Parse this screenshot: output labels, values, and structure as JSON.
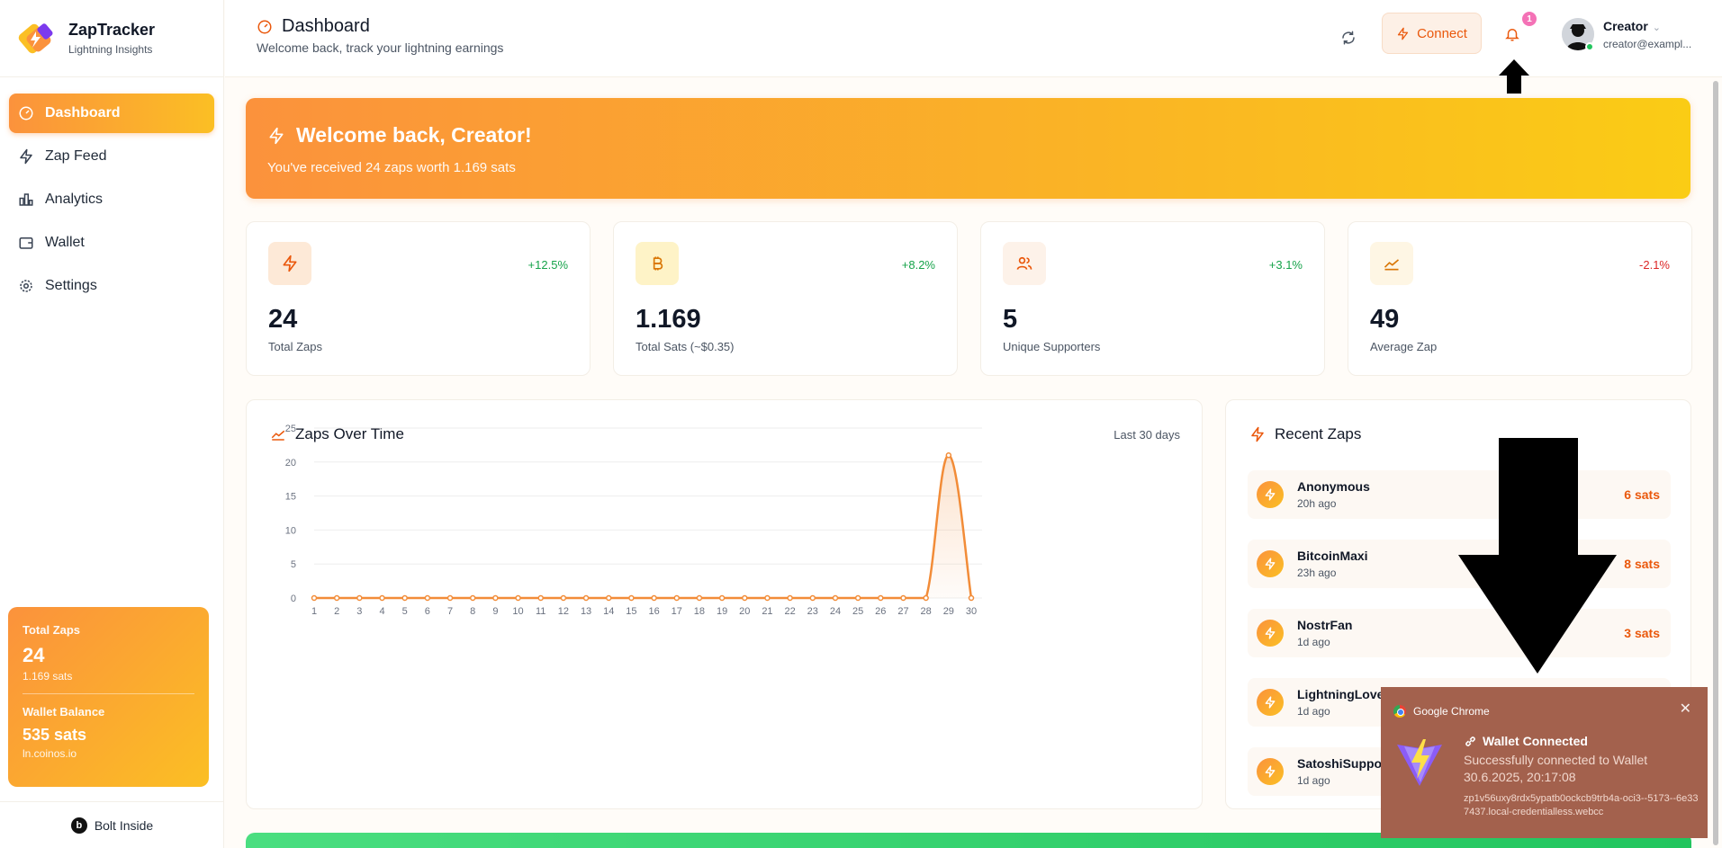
{
  "brand": {
    "name": "ZapTracker",
    "tagline": "Lightning Insights"
  },
  "sidebar": {
    "items": [
      {
        "label": "Dashboard",
        "icon": "dashboard-icon",
        "active": true
      },
      {
        "label": "Zap Feed",
        "icon": "zap-icon",
        "active": false
      },
      {
        "label": "Analytics",
        "icon": "bar-chart-icon",
        "active": false
      },
      {
        "label": "Wallet",
        "icon": "wallet-icon",
        "active": false
      },
      {
        "label": "Settings",
        "icon": "gear-icon",
        "active": false
      }
    ],
    "summary": {
      "total_zaps_label": "Total Zaps",
      "total_zaps_value": "24",
      "total_sats": "1.169 sats",
      "wallet_label": "Wallet Balance",
      "wallet_value": "535 sats",
      "wallet_provider": "ln.coinos.io"
    },
    "footer": "Bolt Inside",
    "footer_badge": "b"
  },
  "header": {
    "title": "Dashboard",
    "subtitle": "Welcome back, track your lightning earnings",
    "connect_label": "Connect",
    "notification_count": "1",
    "user_name": "Creator",
    "user_email": "creator@exampl..."
  },
  "welcome": {
    "title": "Welcome back, Creator!",
    "subtitle": "You've received 24 zaps worth 1.169 sats"
  },
  "stats": [
    {
      "value": "24",
      "label": "Total Zaps",
      "change": "+12.5%",
      "trend": "up",
      "icon": "zap-icon"
    },
    {
      "value": "1.169",
      "label": "Total Sats (~$0.35)",
      "change": "+8.2%",
      "trend": "up",
      "icon": "bitcoin-icon"
    },
    {
      "value": "5",
      "label": "Unique Supporters",
      "change": "+3.1%",
      "trend": "up",
      "icon": "users-icon"
    },
    {
      "value": "49",
      "label": "Average Zap",
      "change": "-2.1%",
      "trend": "down",
      "icon": "trend-icon"
    }
  ],
  "chart": {
    "title": "Zaps Over Time",
    "range": "Last 30 days"
  },
  "chart_data": {
    "type": "area",
    "x": [
      "1",
      "2",
      "3",
      "4",
      "5",
      "6",
      "7",
      "8",
      "9",
      "10",
      "11",
      "12",
      "13",
      "14",
      "15",
      "16",
      "17",
      "18",
      "19",
      "20",
      "21",
      "22",
      "23",
      "24",
      "25",
      "26",
      "27",
      "28",
      "29",
      "30"
    ],
    "values": [
      0,
      0,
      0,
      0,
      0,
      0,
      0,
      0,
      0,
      0,
      0,
      0,
      0,
      0,
      0,
      0,
      0,
      0,
      0,
      0,
      0,
      0,
      0,
      0,
      0,
      0,
      0,
      0,
      21,
      0
    ],
    "ylim": [
      0,
      25
    ],
    "yticks": [
      "0",
      "5",
      "10",
      "15",
      "20",
      "25"
    ],
    "grid": true,
    "color": "#f28c38"
  },
  "recent": {
    "title": "Recent Zaps",
    "items": [
      {
        "name": "Anonymous",
        "time": "20h ago",
        "amount": "6 sats"
      },
      {
        "name": "BitcoinMaxi",
        "time": "23h ago",
        "amount": "8 sats"
      },
      {
        "name": "NostrFan",
        "time": "1d ago",
        "amount": "3 sats"
      },
      {
        "name": "LightningLover",
        "time": "1d ago",
        "amount": ""
      },
      {
        "name": "SatoshiSuppor",
        "time": "1d ago",
        "amount": ""
      }
    ]
  },
  "notification": {
    "app": "Google Chrome",
    "title": "Wallet Connected",
    "message": "Successfully connected to Wallet",
    "time": "30.6.2025, 20:17:08",
    "source": "zp1v56uxy8rdx5ypatb0ockcb9trb4a-oci3--5173--6e337437.local-credentialless.webcc"
  },
  "colors": {
    "accent": "#fb923c",
    "accent2": "#fbbf24",
    "positive": "#16a34a",
    "negative": "#dc2626",
    "notif_bg": "#a3614d"
  }
}
